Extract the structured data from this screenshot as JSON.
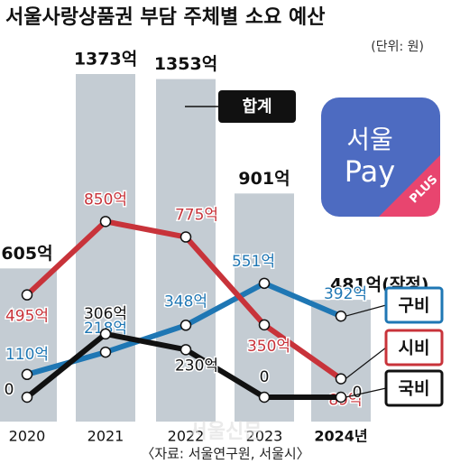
{
  "chart_data": {
    "type": "bar-line",
    "title": "서울사랑상품권 부담 주체별 소요 예산",
    "unit": "(단위: 원)",
    "source": "〈자료: 서울연구원, 서울시〉",
    "watermark": "서울신문",
    "categories": [
      "2020",
      "2021",
      "2022",
      "2023",
      "2024년"
    ],
    "bar": {
      "name": "합계",
      "color": "#c4ccd3",
      "values": [
        605,
        1373,
        1353,
        901,
        481
      ],
      "value_labels": [
        "605억",
        "1373억",
        "1353억",
        "901억",
        "481억(잠정)"
      ]
    },
    "series": [
      {
        "name": "구비",
        "color": "#1f77b4",
        "values": [
          110,
          218,
          348,
          551,
          392
        ],
        "value_labels": [
          "110억",
          "218억",
          "348억",
          "551억",
          "392억"
        ]
      },
      {
        "name": "시비",
        "color": "#c8333a",
        "values": [
          495,
          850,
          775,
          350,
          89
        ],
        "value_labels": [
          "495억",
          "850억",
          "775억",
          "350억",
          "89억"
        ]
      },
      {
        "name": "국비",
        "color": "#111111",
        "values": [
          0,
          306,
          230,
          0,
          0
        ],
        "value_labels": [
          "0",
          "306억",
          "230억",
          "0",
          "0"
        ]
      }
    ],
    "logo": {
      "line1": "서울",
      "line2": "Pay",
      "badge": "PLUS"
    }
  }
}
